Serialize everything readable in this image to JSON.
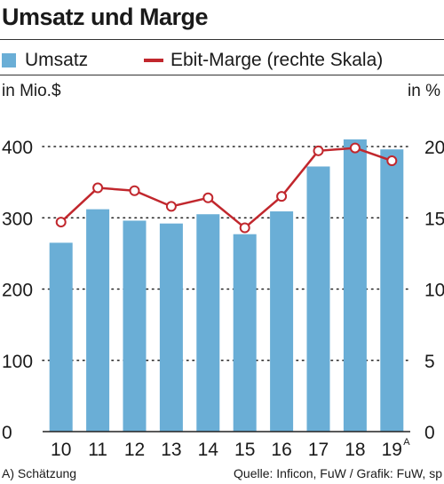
{
  "title": "Umsatz und Marge",
  "legend": {
    "bar_label": "Umsatz",
    "line_label": "Ebit-Marge (rechte Skala)"
  },
  "left_unit": "in Mio.$",
  "right_unit": "in %",
  "footer": {
    "note": "A) Schätzung",
    "source": "Quelle: Inficon, FuW / Grafik: FuW, sp"
  },
  "colors": {
    "bar": "#6aaed6",
    "line": "#c1272d",
    "marker_fill": "#ffffff"
  },
  "chart_data": {
    "type": "bar",
    "title": "Umsatz und Marge",
    "categories": [
      "10",
      "11",
      "12",
      "13",
      "14",
      "15",
      "16",
      "17",
      "18",
      "19"
    ],
    "category_superscripts": [
      "",
      "",
      "",
      "",
      "",
      "",
      "",
      "",
      "",
      "A"
    ],
    "series": [
      {
        "name": "Umsatz",
        "type": "bar",
        "axis": "left",
        "values": [
          265,
          312,
          296,
          292,
          305,
          277,
          309,
          372,
          410,
          396
        ]
      },
      {
        "name": "Ebit-Marge (rechte Skala)",
        "type": "line",
        "axis": "right",
        "values": [
          14.7,
          17.1,
          16.9,
          15.8,
          16.4,
          14.3,
          16.5,
          19.7,
          19.9,
          19.0
        ]
      }
    ],
    "left_axis": {
      "label": "in Mio.$",
      "min": 0,
      "max": 400,
      "ticks": [
        0,
        100,
        200,
        300,
        400
      ]
    },
    "right_axis": {
      "label": "in %",
      "min": 0,
      "max": 20,
      "ticks": [
        0,
        5,
        10,
        15,
        20
      ]
    },
    "grid": "dotted horizontal",
    "legend_position": "top"
  }
}
